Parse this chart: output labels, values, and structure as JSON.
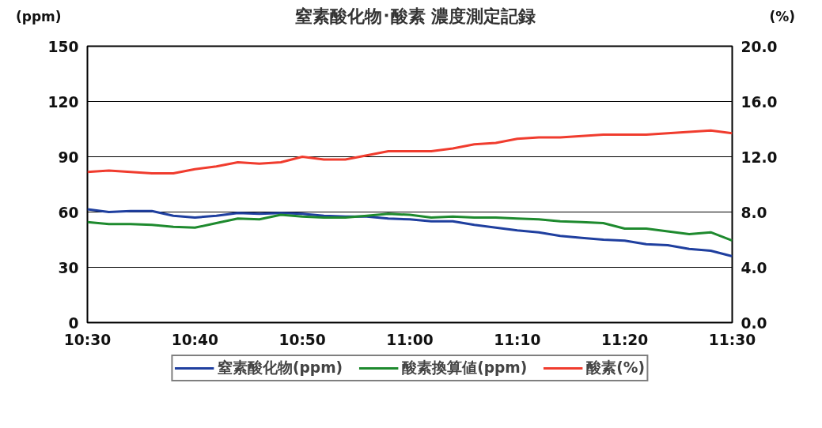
{
  "chart_data": {
    "type": "line",
    "title": "窒素酸化物･酸素 濃度測定記録",
    "ylabel": "(ppm)",
    "y2label": "(%)",
    "x": [
      10.5,
      10.5333,
      10.5667,
      10.6,
      10.6333,
      10.6667,
      10.7,
      10.7333,
      10.7667,
      10.8,
      10.8333,
      10.8667,
      10.9,
      10.9333,
      10.9667,
      11.0,
      11.0333,
      11.0667,
      11.1,
      11.1333,
      11.1667,
      11.2,
      11.2333,
      11.2667,
      11.3,
      11.3333,
      11.3667,
      11.4,
      11.4333,
      11.4667,
      11.5
    ],
    "xlim": [
      10.5,
      11.5
    ],
    "xticks": [
      {
        "value": 10.5,
        "label": "10:30"
      },
      {
        "value": 10.6667,
        "label": "10:40"
      },
      {
        "value": 10.8333,
        "label": "10:50"
      },
      {
        "value": 11.0,
        "label": "11:00"
      },
      {
        "value": 11.1667,
        "label": "11:10"
      },
      {
        "value": 11.3333,
        "label": "11:20"
      },
      {
        "value": 11.5,
        "label": "11:30"
      }
    ],
    "ylim": [
      0,
      150
    ],
    "yticks": [
      0,
      30,
      60,
      90,
      120,
      150
    ],
    "y2lim": [
      0,
      20
    ],
    "y2ticks": [
      {
        "value": 0,
        "label": "0.0"
      },
      {
        "value": 4,
        "label": "4.0"
      },
      {
        "value": 8,
        "label": "8.0"
      },
      {
        "value": 12,
        "label": "12.0"
      },
      {
        "value": 16,
        "label": "16.0"
      },
      {
        "value": 20,
        "label": "20.0"
      }
    ],
    "grid": "y",
    "legend": "bottom",
    "line_style": "solid",
    "series": [
      {
        "name": "窒素酸化物(ppm)",
        "color": "#1f3f9f",
        "values": [
          61.5,
          60,
          60.5,
          60.5,
          58,
          57,
          58,
          59.5,
          59,
          59.5,
          59,
          58,
          57.5,
          57.5,
          56.5,
          56,
          55,
          55,
          53,
          51.5,
          50,
          49,
          47,
          46,
          45,
          44.5,
          42.5,
          42,
          40,
          39,
          36
        ]
      },
      {
        "name": "酸素換算値(ppm)",
        "color": "#1e8a2e",
        "values": [
          54.5,
          53.5,
          53.5,
          53,
          52,
          51.5,
          54,
          56.5,
          56,
          58.5,
          57.5,
          57,
          57,
          58,
          59,
          58.5,
          57,
          57.5,
          57,
          57,
          56.5,
          56,
          55,
          54.5,
          54,
          51,
          51,
          49.5,
          48,
          49,
          44.5
        ]
      },
      {
        "name": "酸素(%)",
        "color": "#f03c2e",
        "axis": "y2",
        "values": [
          10.9,
          11.0,
          10.9,
          10.8,
          10.8,
          11.1,
          11.3,
          11.6,
          11.5,
          11.6,
          12.0,
          11.8,
          11.8,
          12.1,
          12.4,
          12.4,
          12.4,
          12.6,
          12.9,
          13.0,
          13.3,
          13.4,
          13.4,
          13.5,
          13.6,
          13.6,
          13.6,
          13.7,
          13.8,
          13.9,
          13.7
        ]
      }
    ]
  }
}
